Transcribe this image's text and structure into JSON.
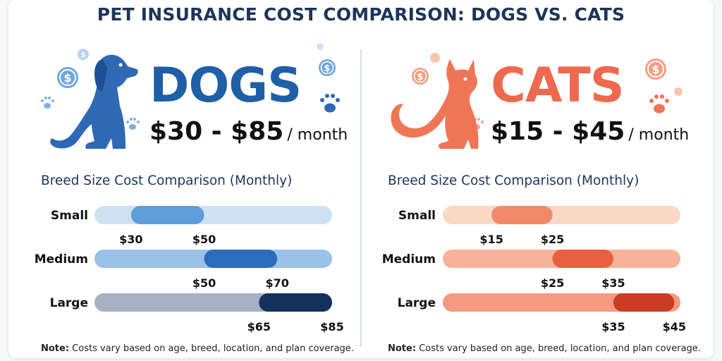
{
  "page_title": "PET INSURANCE COST COMPARISON: DOGS VS. CATS",
  "colors": {
    "dog_accent": "#1f5fa8",
    "cat_accent": "#ee6a4f",
    "title": "#1c3559"
  },
  "chart_data": [
    {
      "type": "bar",
      "subtype": "floating-range",
      "animal": "DOGS",
      "price_range": "$30 - $85",
      "price_unit": "/ month",
      "title": "Breed Size Cost Comparison (Monthly)",
      "categories": [
        "Small",
        "Medium",
        "Large"
      ],
      "ranges": [
        [
          30,
          50
        ],
        [
          50,
          70
        ],
        [
          65,
          85
        ]
      ],
      "range_labels": [
        [
          "$30",
          "$50"
        ],
        [
          "$50",
          "$70"
        ],
        [
          "$65",
          "$85"
        ]
      ],
      "xlim": [
        20,
        85
      ],
      "colors": {
        "track": [
          "#cfe2f5",
          "#9cc1e8",
          "#a6b1c2"
        ],
        "range": [
          "#5e9ed9",
          "#2a6dbc",
          "#14315e"
        ],
        "icon": "#2f69b5"
      },
      "note_label": "Note:",
      "note_text": " Costs vary based on age, breed, location, and plan coverage."
    },
    {
      "type": "bar",
      "subtype": "floating-range",
      "animal": "CATS",
      "price_range": "$15 - $45",
      "price_unit": "/ month",
      "title": "Breed Size Cost Comparison (Monthly)",
      "categories": [
        "Small",
        "Medium",
        "Large"
      ],
      "ranges": [
        [
          15,
          25
        ],
        [
          25,
          35
        ],
        [
          35,
          45
        ]
      ],
      "range_labels": [
        [
          "$15",
          "$25"
        ],
        [
          "$25",
          "$35"
        ],
        [
          "$35",
          "$45"
        ]
      ],
      "xlim": [
        7,
        46
      ],
      "colors": {
        "track": [
          "#fbd7c6",
          "#f7b39a",
          "#f39a80"
        ],
        "range": [
          "#f08a68",
          "#e8603f",
          "#cc3b24"
        ],
        "icon": "#ee7656"
      },
      "note_label": "Note:",
      "note_text": " Costs vary based on age, breed, location, and plan coverage."
    }
  ],
  "icons": [
    "dog-silhouette-icon",
    "cat-silhouette-icon",
    "dollar-coin-icon",
    "paw-print-icon"
  ]
}
